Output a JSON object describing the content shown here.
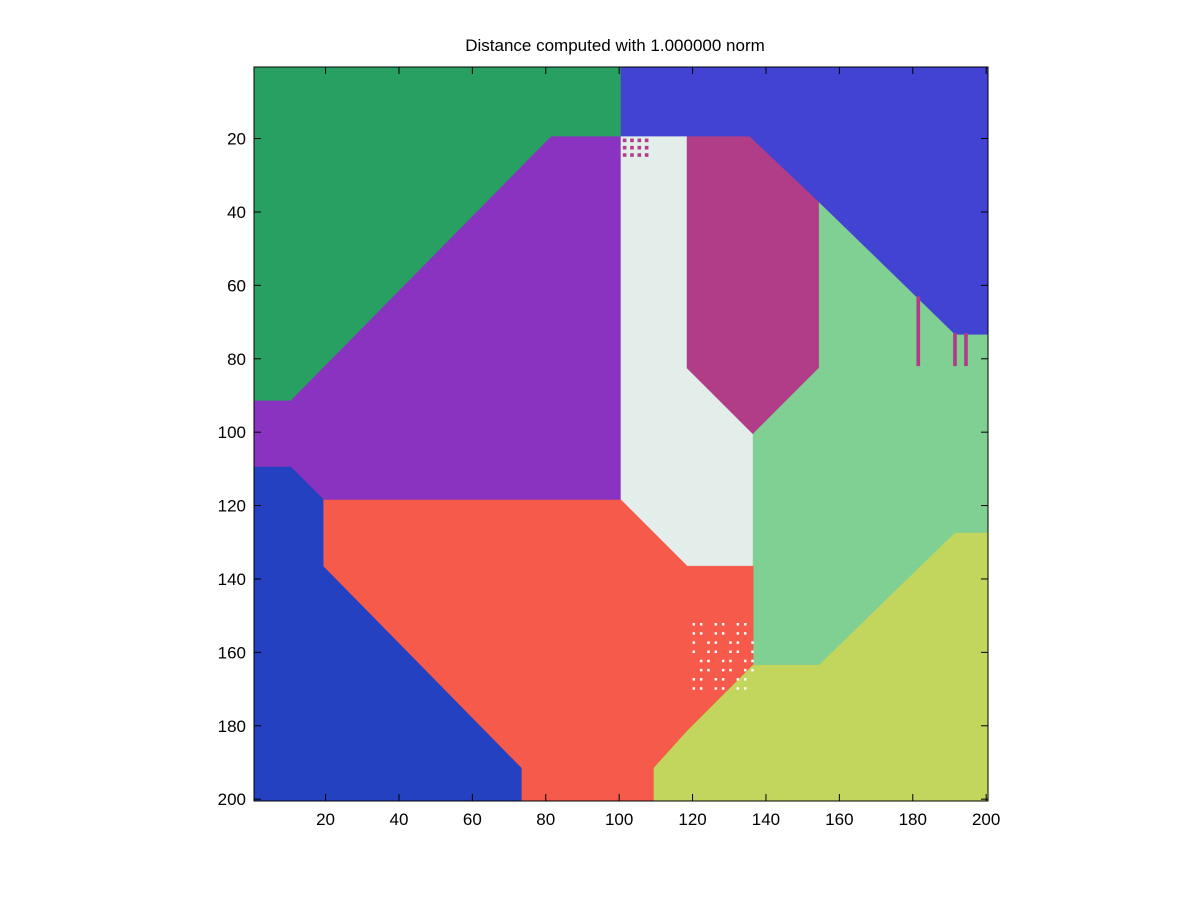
{
  "chart_data": {
    "type": "heatmap",
    "title": "Distance computed with 1.000000 norm",
    "xlabel": "",
    "ylabel": "",
    "xlim": [
      0.5,
      200.5
    ],
    "ylim": [
      0.5,
      200.5
    ],
    "y_axis_reversed": true,
    "grid": false,
    "x_ticks": [
      20,
      40,
      60,
      80,
      100,
      120,
      140,
      160,
      180,
      200
    ],
    "y_ticks": [
      20,
      40,
      60,
      80,
      100,
      120,
      140,
      160,
      180,
      200
    ],
    "regions": [
      {
        "label": "region-top-left",
        "color": "#27a062",
        "polygon": [
          [
            0.5,
            0.5
          ],
          [
            100.5,
            0.5
          ],
          [
            100.5,
            19.5
          ],
          [
            81.5,
            19.5
          ],
          [
            10.5,
            91.5
          ],
          [
            0.5,
            91.5
          ]
        ]
      },
      {
        "label": "region-top-right",
        "color": "#4243d3",
        "polygon": [
          [
            100.5,
            0.5
          ],
          [
            200.5,
            0.5
          ],
          [
            200.5,
            73.5
          ],
          [
            191.5,
            73.5
          ],
          [
            154.5,
            37.5
          ],
          [
            135.5,
            19.5
          ],
          [
            100.5,
            19.5
          ]
        ]
      },
      {
        "label": "region-upper-center-left",
        "color": "#8a33c0",
        "polygon": [
          [
            81.5,
            19.5
          ],
          [
            100.5,
            19.5
          ],
          [
            100.5,
            118.5
          ],
          [
            19.5,
            118.5
          ],
          [
            10.5,
            109.5
          ],
          [
            0.5,
            109.5
          ],
          [
            0.5,
            91.5
          ],
          [
            10.5,
            91.5
          ]
        ]
      },
      {
        "label": "region-center-corridor",
        "color": "#e3ede9",
        "polygon": [
          [
            100.5,
            19.5
          ],
          [
            118.5,
            19.5
          ],
          [
            118.5,
            82.5
          ],
          [
            136.5,
            100.5
          ],
          [
            136.5,
            136.5
          ],
          [
            118.5,
            136.5
          ],
          [
            100.5,
            118.5
          ]
        ]
      },
      {
        "label": "region-upper-center-right",
        "color": "#b13d88",
        "polygon": [
          [
            118.5,
            19.5
          ],
          [
            135.5,
            19.5
          ],
          [
            154.5,
            37.5
          ],
          [
            154.5,
            82.5
          ],
          [
            136.5,
            100.5
          ],
          [
            118.5,
            82.5
          ]
        ]
      },
      {
        "label": "region-right-middle",
        "color": "#80cf93",
        "polygon": [
          [
            154.5,
            37.5
          ],
          [
            191.5,
            73.5
          ],
          [
            200.5,
            73.5
          ],
          [
            200.5,
            127.5
          ],
          [
            191.5,
            127.5
          ],
          [
            154.5,
            163.5
          ],
          [
            136.5,
            163.5
          ],
          [
            136.5,
            100.5
          ],
          [
            154.5,
            82.5
          ]
        ]
      },
      {
        "label": "region-bottom-left",
        "color": "#2341c0",
        "polygon": [
          [
            0.5,
            109.5
          ],
          [
            10.5,
            109.5
          ],
          [
            19.5,
            118.5
          ],
          [
            19.5,
            136.5
          ],
          [
            73.5,
            191.5
          ],
          [
            73.5,
            200.5
          ],
          [
            0.5,
            200.5
          ]
        ]
      },
      {
        "label": "region-bottom-center",
        "color": "#f55a4b",
        "polygon": [
          [
            19.5,
            118.5
          ],
          [
            100.5,
            118.5
          ],
          [
            118.5,
            136.5
          ],
          [
            136.5,
            136.5
          ],
          [
            136.5,
            163.5
          ],
          [
            118.5,
            181.5
          ],
          [
            109.5,
            191.5
          ],
          [
            109.5,
            200.5
          ],
          [
            73.5,
            200.5
          ],
          [
            73.5,
            191.5
          ],
          [
            19.5,
            136.5
          ]
        ]
      },
      {
        "label": "region-bottom-right",
        "color": "#c2d65d",
        "polygon": [
          [
            136.5,
            163.5
          ],
          [
            154.5,
            163.5
          ],
          [
            191.5,
            127.5
          ],
          [
            200.5,
            127.5
          ],
          [
            200.5,
            200.5
          ],
          [
            109.5,
            200.5
          ],
          [
            109.5,
            191.5
          ],
          [
            118.5,
            181.5
          ]
        ]
      }
    ],
    "artifacts": [
      {
        "label": "magenta-stripe-1",
        "color": "#b13d88",
        "x": [
          181,
          182
        ],
        "y": [
          63,
          82
        ]
      },
      {
        "label": "magenta-stripe-2",
        "color": "#b13d88",
        "x": [
          191,
          192
        ],
        "y": [
          73,
          82
        ]
      },
      {
        "label": "magenta-stripe-3",
        "color": "#b13d88",
        "x": [
          194,
          195
        ],
        "y": [
          73,
          82
        ]
      },
      {
        "label": "magenta-speckle",
        "color": "#b13d88",
        "x": [
          101,
          107
        ],
        "y": [
          20,
          25
        ]
      },
      {
        "label": "white-speckle-grid",
        "color": "#ffffff",
        "x": [
          120,
          137
        ],
        "y": [
          152,
          170
        ]
      }
    ]
  }
}
